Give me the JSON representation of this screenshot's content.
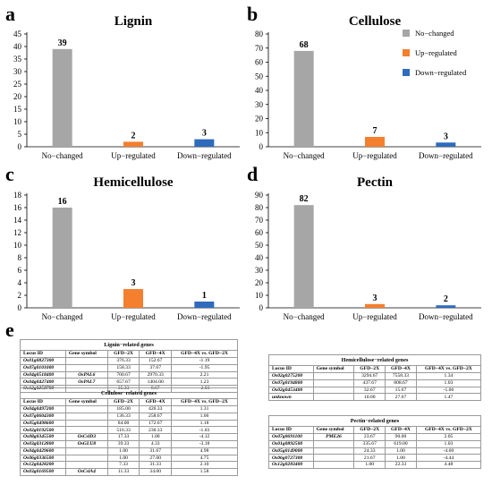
{
  "panels": {
    "a": "a",
    "b": "b",
    "c": "c",
    "d": "d",
    "e": "e"
  },
  "colors": {
    "no_changed": "#a6a6a6",
    "up_regulated": "#f47f2e",
    "down_regulated": "#2f6bbd"
  },
  "legend": {
    "items": [
      "No−changed",
      "Up−regulated",
      "Down−regulated"
    ]
  },
  "chart_data": [
    {
      "type": "bar",
      "title": "Lignin",
      "categories": [
        "No−changed",
        "Up−regulated",
        "Down−regulated"
      ],
      "values": [
        39,
        2,
        3
      ],
      "ylim": [
        0,
        45
      ],
      "yticks": [
        0,
        5,
        10,
        15,
        20,
        25,
        30,
        35,
        40,
        45
      ]
    },
    {
      "type": "bar",
      "title": "Cellulose",
      "categories": [
        "No−changed",
        "Up−regulated",
        "Down−regulated"
      ],
      "values": [
        68,
        7,
        3
      ],
      "ylim": [
        0,
        80
      ],
      "yticks": [
        0,
        10,
        20,
        30,
        40,
        50,
        60,
        70,
        80
      ]
    },
    {
      "type": "bar",
      "title": "Hemicellulose",
      "categories": [
        "No−changed",
        "Up−regulated",
        "Down−regulated"
      ],
      "values": [
        16,
        3,
        1
      ],
      "ylim": [
        0,
        18
      ],
      "yticks": [
        0,
        2,
        4,
        6,
        8,
        10,
        12,
        14,
        16,
        18
      ]
    },
    {
      "type": "bar",
      "title": "Pectin",
      "categories": [
        "No−changed",
        "Up−regulated",
        "Down−regulated"
      ],
      "values": [
        82,
        3,
        2
      ],
      "ylim": [
        0,
        90
      ],
      "yticks": [
        0,
        10,
        20,
        30,
        40,
        50,
        60,
        70,
        80,
        90
      ]
    }
  ],
  "tables": {
    "lignin": {
      "caption": "Lignin−related genes",
      "headers": [
        "Locus ID",
        "Gene symbol",
        "GFD−2X",
        "GFD−4X",
        "GFD−4X vs. GFD−2X"
      ],
      "rows": [
        [
          "Os01g0827300",
          "",
          "376.33",
          "152.67",
          "-1.19"
        ],
        [
          "Os07g0101000",
          "",
          "158.33",
          "37.67",
          "-1.95"
        ],
        [
          "Os04g0518400",
          "OsPAL6",
          "700.67",
          "2970.33",
          "2.21"
        ],
        [
          "Os04g0427400",
          "OsPAL7",
          "657.67",
          "1404.00",
          "1.23"
        ],
        [
          "Os12g0258700",
          "",
          "35.33",
          "8.67",
          "-2.03"
        ]
      ]
    },
    "cellulose": {
      "caption": "Cellulose−related genes",
      "headers": [
        "Locus ID",
        "Gene symbol",
        "GFD−2X",
        "GFD−4X",
        "GFD−4X vs. GFD−2X"
      ],
      "rows": [
        [
          "Os04g0497200",
          "",
          "185.00",
          "420.33",
          "1.31"
        ],
        [
          "Os07g0604300",
          "",
          "136.33",
          "258.67",
          "1.06"
        ],
        [
          "Os05g0498600",
          "",
          "84.00",
          "172.67",
          "1.18"
        ],
        [
          "Os02g0192500",
          "",
          "516.33",
          "230.33",
          "-1.03"
        ],
        [
          "Os08g0345500",
          "OsCslD3",
          "17.33",
          "1.00",
          "-4.12"
        ],
        [
          "Os03g0312800",
          "OsGLU8",
          "39.33",
          "4.33",
          "-3.18"
        ],
        [
          "Os04g0429600",
          "",
          "1.00",
          "31.67",
          "4.98"
        ],
        [
          "Os06g0336500",
          "",
          "1.00",
          "27.00",
          "4.75"
        ],
        [
          "Os12g0428200",
          "",
          "7.33",
          "31.33",
          "2.10"
        ],
        [
          "Os03g0169500",
          "OsCslA4",
          "11.33",
          "34.00",
          "1.58"
        ]
      ]
    },
    "hemicellulose": {
      "caption": "Hemicellulose−related genes",
      "headers": [
        "Locus ID",
        "Gene symbol",
        "GFD−2X",
        "GFD−4X",
        "GFD−4X vs. GFD−2X"
      ],
      "rows": [
        [
          "Os02g0275200",
          "",
          "3294.67",
          "7558.33",
          "1.34"
        ],
        [
          "Os07g0194800",
          "",
          "437.67",
          "808.67",
          "1.03"
        ],
        [
          "Os02g0453400",
          "",
          "32.67",
          "15.67",
          "-1.06"
        ],
        [
          "unknown",
          "",
          "10.00",
          "27.67",
          "1.47"
        ]
      ]
    },
    "pectin": {
      "caption": "Pectin−related genes",
      "headers": [
        "Locus ID",
        "Gene symbol",
        "GFD−2X",
        "GFD−4X",
        "GFD−4X vs. GFD−2X"
      ],
      "rows": [
        [
          "Os07g0691100",
          "PME26",
          "23.67",
          "90.00",
          "2.05"
        ],
        [
          "Os01g0892500",
          "",
          "335.67",
          "619.00",
          "1.03"
        ],
        [
          "Os05g0149000",
          "",
          "24.33",
          "1.00",
          "-4.60"
        ],
        [
          "Os06g0727300",
          "",
          "21.67",
          "1.00",
          "-4.44"
        ],
        [
          "Os12g0283400",
          "",
          "1.00",
          "22.33",
          "4.48"
        ]
      ]
    }
  }
}
